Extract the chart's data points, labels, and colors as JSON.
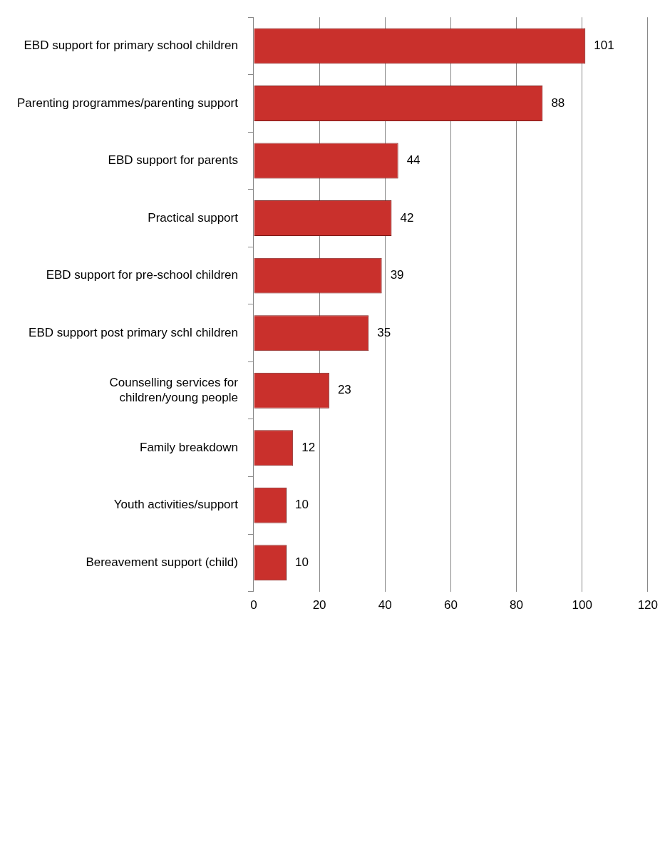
{
  "chart_data": {
    "type": "bar",
    "orientation": "horizontal",
    "categories": [
      "EBD support for primary school children",
      "Parenting programmes/parenting support",
      "EBD support for parents",
      "Practical support",
      "EBD support for pre-school children",
      "EBD support post primary schl children",
      "Counselling services for children/young people",
      "Family breakdown",
      "Youth activities/support",
      "Bereavement support (child)"
    ],
    "values": [
      101,
      88,
      44,
      42,
      39,
      35,
      23,
      12,
      10,
      10
    ],
    "color": "#c9302c",
    "xlim": [
      0,
      120
    ],
    "xticks": [
      0,
      20,
      40,
      60,
      80,
      100,
      120
    ],
    "grid": "x",
    "data_labels": true,
    "legend": false
  }
}
